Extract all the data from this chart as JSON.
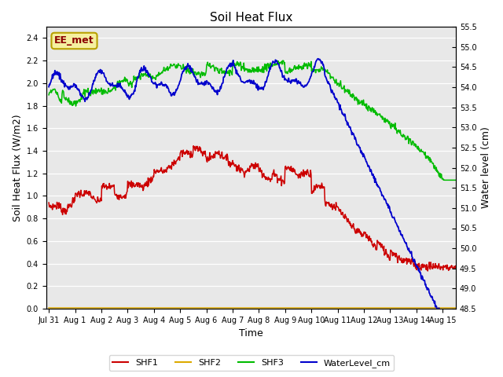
{
  "title": "Soil Heat Flux",
  "ylabel_left": "Soil Heat Flux (W/m2)",
  "ylabel_right": "Water level (cm)",
  "xlabel": "Time",
  "annotation_text": "EE_met",
  "annotation_bg": "#f5f0a0",
  "annotation_border": "#b8a000",
  "annotation_color": "#8b0000",
  "xlim_days": [
    -0.1,
    15.5
  ],
  "ylim_left": [
    0.0,
    2.5
  ],
  "ylim_right": [
    48.5,
    55.5
  ],
  "yticks_left": [
    0.0,
    0.2,
    0.4,
    0.6,
    0.8,
    1.0,
    1.2,
    1.4,
    1.6,
    1.8,
    2.0,
    2.2,
    2.4
  ],
  "yticks_right": [
    48.5,
    49.0,
    49.5,
    50.0,
    50.5,
    51.0,
    51.5,
    52.0,
    52.5,
    53.0,
    53.5,
    54.0,
    54.5,
    55.0,
    55.5
  ],
  "xtick_labels": [
    "Jul 31",
    "Aug 1",
    "Aug 2",
    "Aug 3",
    "Aug 4",
    "Aug 5",
    "Aug 6",
    "Aug 7",
    "Aug 8",
    "Aug 9",
    "Aug 10",
    "Aug 11",
    "Aug 12",
    "Aug 13",
    "Aug 14",
    "Aug 15"
  ],
  "xtick_positions": [
    0,
    1,
    2,
    3,
    4,
    5,
    6,
    7,
    8,
    9,
    10,
    11,
    12,
    13,
    14,
    15
  ],
  "bg_color": "#e8e8e8",
  "grid_color": "#ffffff",
  "shf1_color": "#cc0000",
  "shf2_color": "#ddaa00",
  "shf3_color": "#00bb00",
  "water_color": "#0000cc",
  "legend_items": [
    "SHF1",
    "SHF2",
    "SHF3",
    "WaterLevel_cm"
  ],
  "legend_colors": [
    "#cc0000",
    "#ddaa00",
    "#00bb00",
    "#0000cc"
  ]
}
